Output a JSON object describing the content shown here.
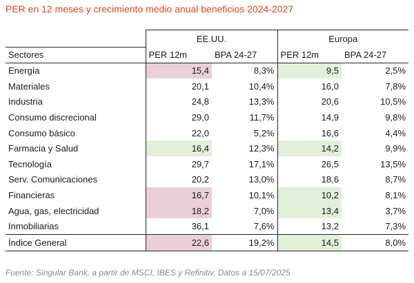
{
  "title": "PER en 12 meses y crecimiento medio anual beneficios 2024-2027",
  "table": {
    "groups": [
      "EE.UU.",
      "Europa"
    ],
    "columns": {
      "sector": "Sectores",
      "us_per": "PER 12m",
      "us_bpa": "BPA 24-27",
      "eu_per": "PER 12m",
      "eu_bpa": "BPA 24-27"
    },
    "highlight_colors": {
      "red": "#ead0d5",
      "green": "#e2efda"
    },
    "rows": [
      {
        "sector": "Energía",
        "us_per": "15,4",
        "us_bpa": "8,3%",
        "eu_per": "9,5",
        "eu_bpa": "2,5%"
      },
      {
        "sector": "Materiales",
        "us_per": "20,1",
        "us_bpa": "10,4%",
        "eu_per": "16,0",
        "eu_bpa": "7,8%"
      },
      {
        "sector": "Industria",
        "us_per": "24,8",
        "us_bpa": "13,3%",
        "eu_per": "20,6",
        "eu_bpa": "10,5%"
      },
      {
        "sector": "Consumo discrecional",
        "us_per": "29,0",
        "us_bpa": "11,7%",
        "eu_per": "14,9",
        "eu_bpa": "9,8%"
      },
      {
        "sector": "Consumo básico",
        "us_per": "22,0",
        "us_bpa": "5,2%",
        "eu_per": "16,6",
        "eu_bpa": "4,4%"
      },
      {
        "sector": "Farmacia y Salud",
        "us_per": "16,4",
        "us_bpa": "12,3%",
        "eu_per": "14,2",
        "eu_bpa": "9,9%"
      },
      {
        "sector": "Tecnología",
        "us_per": "29,7",
        "us_bpa": "17,1%",
        "eu_per": "26,5",
        "eu_bpa": "13,5%"
      },
      {
        "sector": "Serv. Comunicaciones",
        "us_per": "20,2",
        "us_bpa": "13,0%",
        "eu_per": "18,6",
        "eu_bpa": "8,7%"
      },
      {
        "sector": "Financieras",
        "us_per": "16,7",
        "us_bpa": "10,1%",
        "eu_per": "10,2",
        "eu_bpa": "8,1%"
      },
      {
        "sector": "Agua, gas, electricidad",
        "us_per": "18,2",
        "us_bpa": "7,0%",
        "eu_per": "13,4",
        "eu_bpa": "3,7%"
      },
      {
        "sector": "Inmobiliarias",
        "us_per": "36,1",
        "us_bpa": "7,6%",
        "eu_per": "13,2",
        "eu_bpa": "7,3%"
      }
    ],
    "total": {
      "sector": "Índice General",
      "us_per": "22,6",
      "us_bpa": "19,2%",
      "eu_per": "14,5",
      "eu_bpa": "8,0%"
    }
  },
  "source": "Fuente: Singular Bank, a partir de MSCI, IBES y Refinitiv. Datos a 15/07/2025"
}
